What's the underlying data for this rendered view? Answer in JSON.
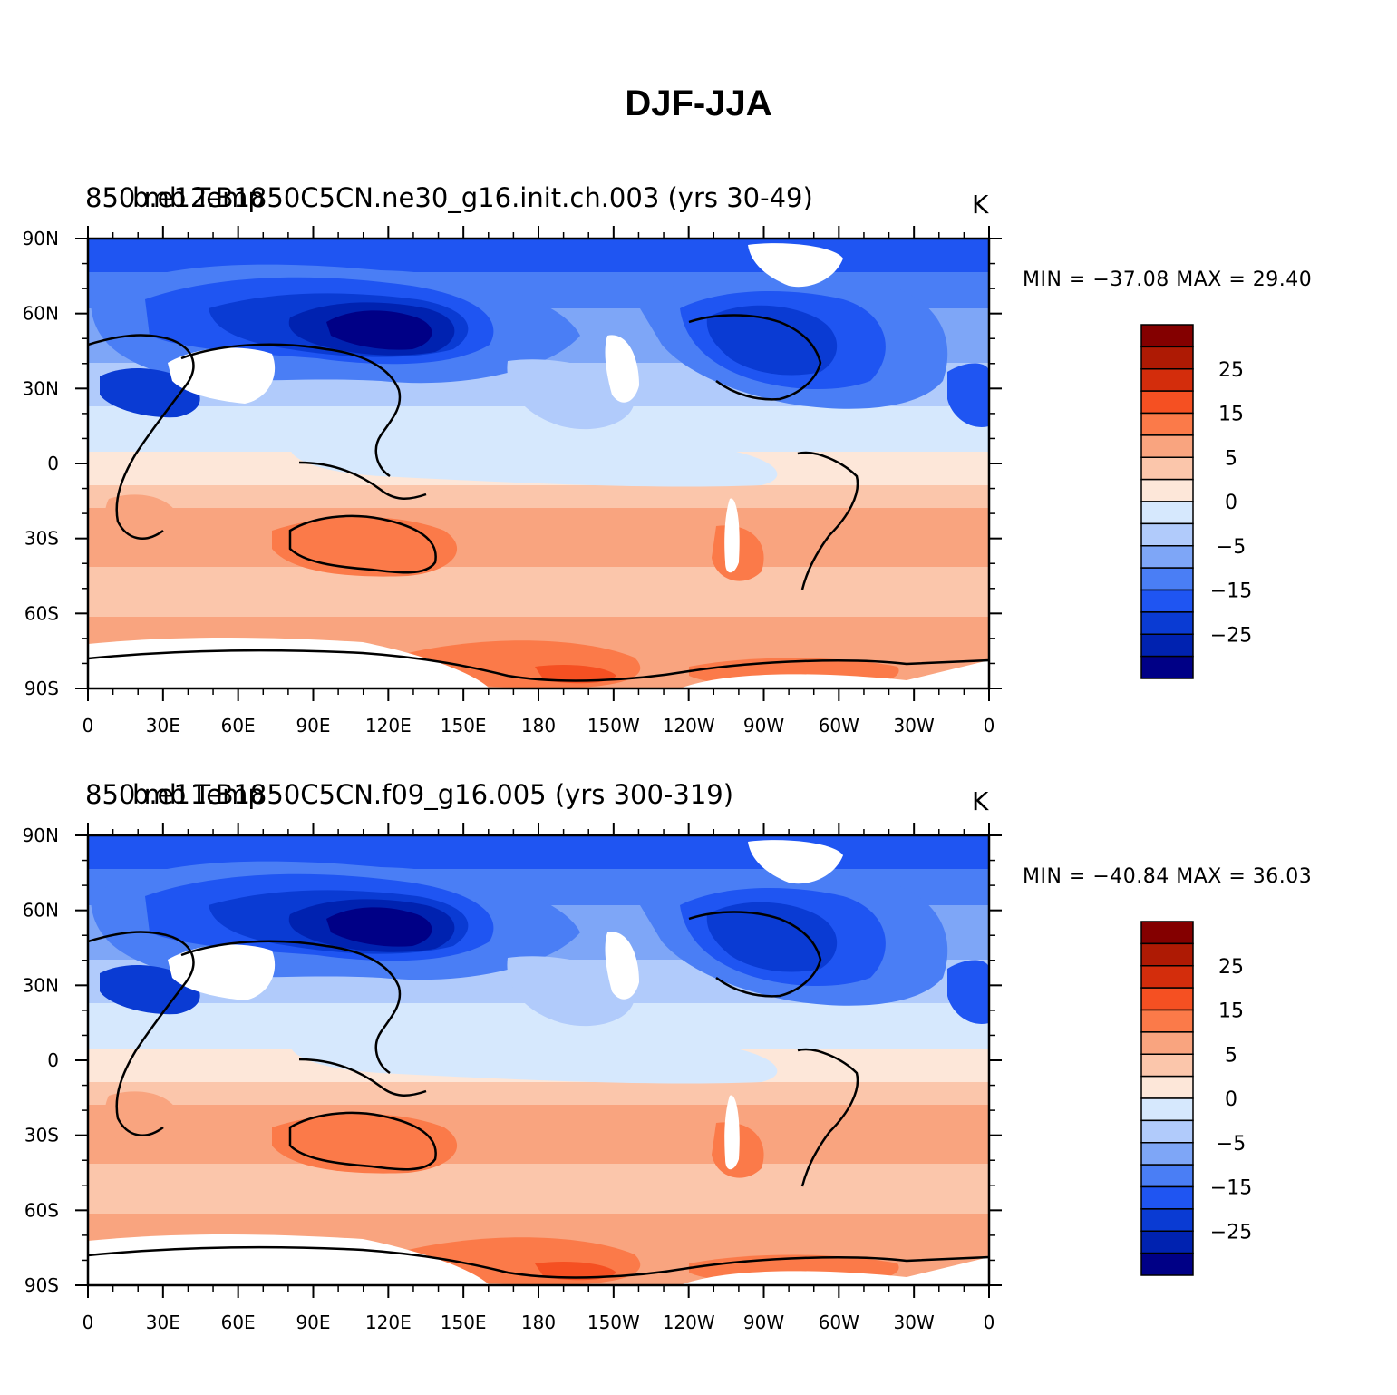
{
  "figure": {
    "title": "DJF-JJA"
  },
  "chart_data": [
    {
      "type": "map",
      "case_name": "b.e12.B1850C5CN.ne30_g16.init.ch.003 (yrs 30-49)",
      "variable": "850 mb Temp",
      "units": "K",
      "min_max": "MIN = −37.08  MAX =   29.40",
      "min": -37.08,
      "max": 29.4,
      "lat_ticks": [
        "90N",
        "60N",
        "30N",
        "0",
        "30S",
        "60S",
        "90S"
      ],
      "lon_ticks": [
        "0",
        "30E",
        "60E",
        "90E",
        "120E",
        "150E",
        "180",
        "150W",
        "120W",
        "90W",
        "60W",
        "30W",
        "0"
      ],
      "colorbar_labels": [
        "25",
        "15",
        "5",
        "0",
        "−5",
        "−15",
        "−25"
      ]
    },
    {
      "type": "map",
      "case_name": "b.e11.B1850C5CN.f09_g16.005 (yrs 300-319)",
      "variable": "850 mb Temp",
      "units": "K",
      "min_max": "MIN = −40.84  MAX =   36.03",
      "min": -40.84,
      "max": 36.03,
      "lat_ticks": [
        "90N",
        "60N",
        "30N",
        "0",
        "30S",
        "60S",
        "90S"
      ],
      "lon_ticks": [
        "0",
        "30E",
        "60E",
        "90E",
        "120E",
        "150E",
        "180",
        "150W",
        "120W",
        "90W",
        "60W",
        "30W",
        "0"
      ],
      "colorbar_labels": [
        "25",
        "15",
        "5",
        "0",
        "−5",
        "−15",
        "−25"
      ]
    }
  ],
  "palette": [
    "#000086",
    "#0022b0",
    "#0a3bd3",
    "#1f55f2",
    "#4a7ef5",
    "#7ea6f7",
    "#b1cbfb",
    "#d6e8fd",
    "#fde7d9",
    "#fbc6ab",
    "#f9a47f",
    "#fb7a49",
    "#f55022",
    "#d32d0c",
    "#ae1a04",
    "#840000"
  ]
}
